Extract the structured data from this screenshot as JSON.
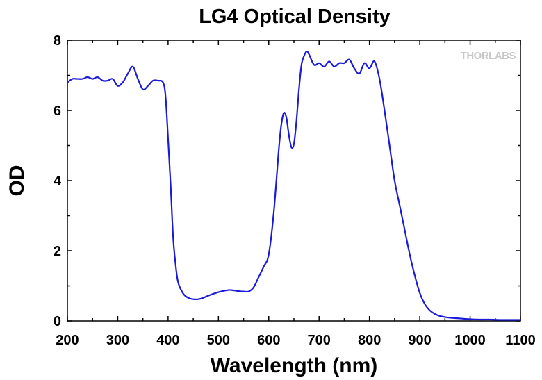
{
  "chart_data": {
    "type": "line",
    "title": "LG4 Optical Density",
    "xlabel": "Wavelength (nm)",
    "ylabel": "OD",
    "xlim": [
      200,
      1100
    ],
    "ylim": [
      0,
      8
    ],
    "x_ticks": [
      200,
      300,
      400,
      500,
      600,
      700,
      800,
      900,
      1000,
      1100
    ],
    "y_ticks": [
      0,
      2,
      4,
      6,
      8
    ],
    "grid": false,
    "watermark": "THORLABS",
    "line_color": "#1a1adb",
    "series": [
      {
        "x": [
          200,
          210,
          220,
          230,
          240,
          250,
          260,
          270,
          280,
          290,
          300,
          310,
          320,
          330,
          340,
          350,
          360,
          370,
          380,
          390,
          395,
          400,
          405,
          410,
          415,
          420,
          430,
          440,
          450,
          460,
          470,
          480,
          500,
          520,
          530,
          540,
          550,
          560,
          570,
          580,
          590,
          600,
          610,
          620,
          625,
          630,
          635,
          640,
          645,
          650,
          655,
          660,
          665,
          670,
          675,
          680,
          690,
          700,
          710,
          720,
          730,
          740,
          750,
          760,
          770,
          780,
          790,
          800,
          810,
          820,
          830,
          840,
          850,
          860,
          870,
          880,
          890,
          900,
          910,
          920,
          930,
          940,
          950,
          960,
          980,
          1000,
          1020,
          1040,
          1060,
          1080,
          1100
        ],
        "y": [
          6.8,
          6.9,
          6.9,
          6.9,
          6.95,
          6.9,
          6.95,
          6.85,
          6.85,
          6.9,
          6.7,
          6.8,
          7.05,
          7.25,
          6.9,
          6.6,
          6.7,
          6.85,
          6.85,
          6.8,
          6.4,
          5.2,
          3.9,
          2.4,
          1.6,
          1.1,
          0.78,
          0.66,
          0.62,
          0.62,
          0.66,
          0.72,
          0.82,
          0.88,
          0.87,
          0.85,
          0.84,
          0.84,
          0.96,
          1.25,
          1.55,
          1.9,
          3.1,
          4.9,
          5.6,
          5.93,
          5.8,
          5.3,
          4.95,
          5.05,
          5.7,
          6.6,
          7.3,
          7.55,
          7.68,
          7.6,
          7.3,
          7.35,
          7.25,
          7.4,
          7.25,
          7.35,
          7.35,
          7.45,
          7.2,
          7.05,
          7.35,
          7.2,
          7.4,
          6.9,
          6.0,
          5.0,
          4.0,
          3.3,
          2.6,
          1.9,
          1.3,
          0.8,
          0.48,
          0.3,
          0.2,
          0.14,
          0.11,
          0.09,
          0.07,
          0.05,
          0.04,
          0.04,
          0.03,
          0.03,
          0.03
        ]
      }
    ]
  }
}
